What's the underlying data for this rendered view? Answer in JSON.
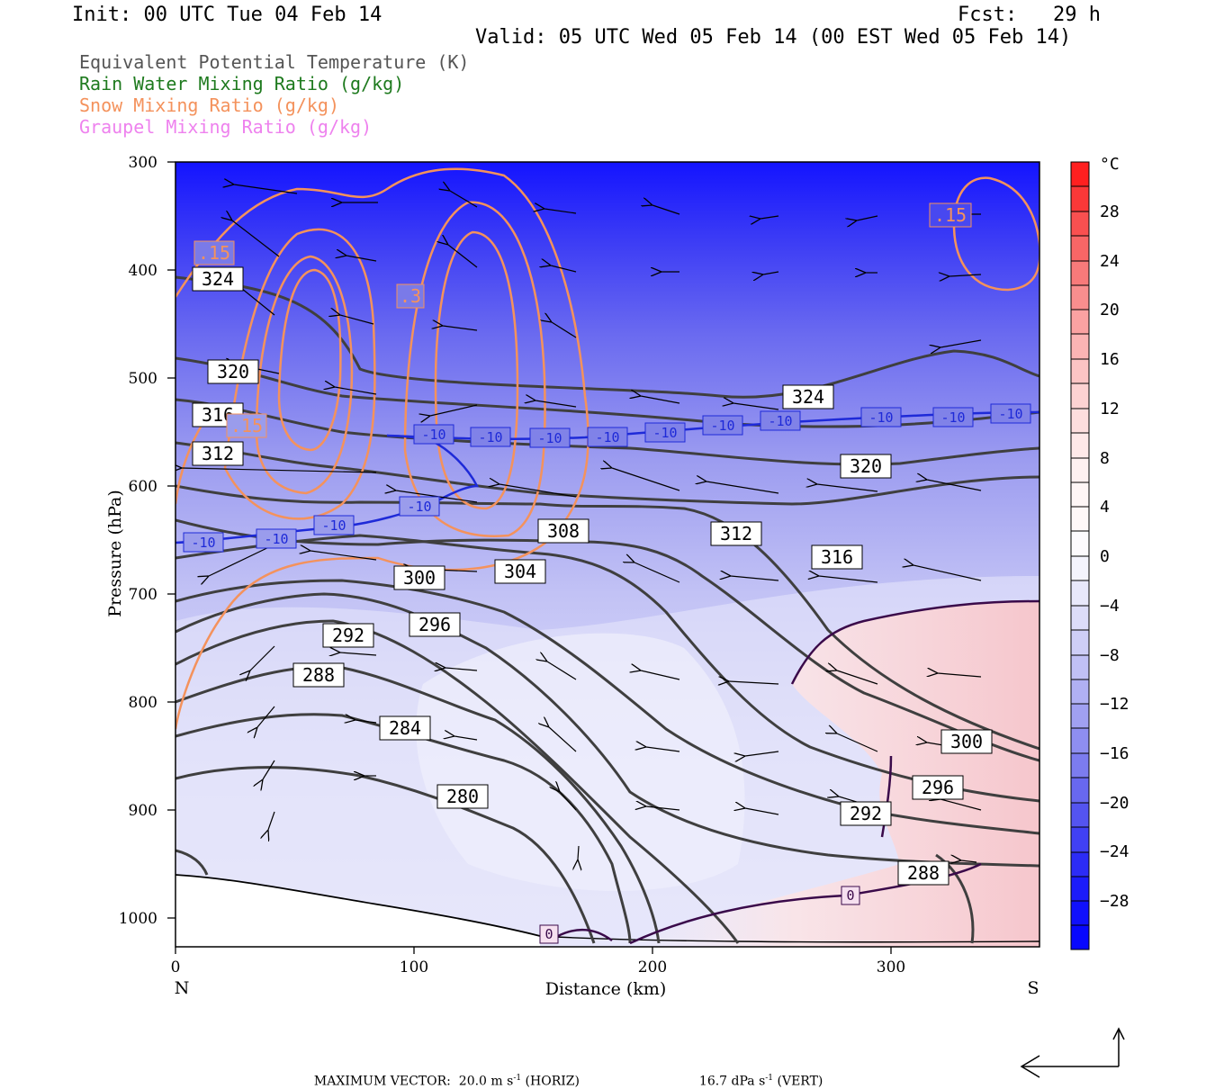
{
  "header": {
    "init": "Init: 00 UTC Tue 04 Feb 14",
    "fcst": "Fcst:   29 h",
    "valid": "Valid: 05 UTC Wed 05 Feb 14 (00 EST Wed 05 Feb 14)"
  },
  "legend": [
    {
      "label": "Equivalent Potential Temperature (K)",
      "color": "#555555"
    },
    {
      "label": "Rain Water Mixing Ratio (g/kg)",
      "color": "#1e7a1e"
    },
    {
      "label": "Snow Mixing Ratio (g/kg)",
      "color": "#f4925c"
    },
    {
      "label": "Graupel Mixing Ratio (g/kg)",
      "color": "#ee82ee"
    }
  ],
  "footer": {
    "max_vector": "MAXIMUM VECTOR:  20.0 m s",
    "horiz": " (HORIZ)",
    "vert": "16.7 dPa s",
    "vert_suffix": " (VERT)",
    "exp": "-1"
  },
  "chart_data": {
    "type": "contour",
    "xlabel": "Distance (km)",
    "ylabel": "Pressure (hPa)",
    "xlim": [
      0,
      360
    ],
    "ylim": [
      1030,
      300
    ],
    "x_ticks": [
      0,
      100,
      200,
      300
    ],
    "y_ticks": [
      300,
      400,
      500,
      600,
      700,
      800,
      900,
      1000
    ],
    "x_end_labels": {
      "left": "N",
      "right": "S"
    },
    "colorbar": {
      "unit": "°C",
      "tick_labels": [
        "28",
        "24",
        "20",
        "16",
        "12",
        "8",
        "4",
        "0",
        "−4",
        "−8",
        "−12",
        "−16",
        "−20",
        "−24",
        "−28"
      ]
    },
    "theta_e_labels": [
      "324",
      "320",
      "316",
      "312",
      "308",
      "304",
      "300",
      "296",
      "292",
      "288",
      "284",
      "280",
      "324",
      "320",
      "316",
      "312",
      "300",
      "296",
      "292",
      "288"
    ],
    "temperature_labels": [
      "-10",
      "-10",
      "-10",
      "-10",
      "-10",
      "-10",
      "-10",
      "-10",
      "-10",
      "-10",
      "-10",
      "-10",
      "-10",
      "-10",
      "0",
      "0"
    ],
    "snow_labels": [
      ".15",
      ".3",
      ".15",
      ".15"
    ]
  },
  "colors": {
    "theta_e": "#3f3f3f",
    "snow": "#f4925c",
    "isotherm_neg10": "#1e2ad8",
    "isotherm_0": "#3a0a4a"
  }
}
